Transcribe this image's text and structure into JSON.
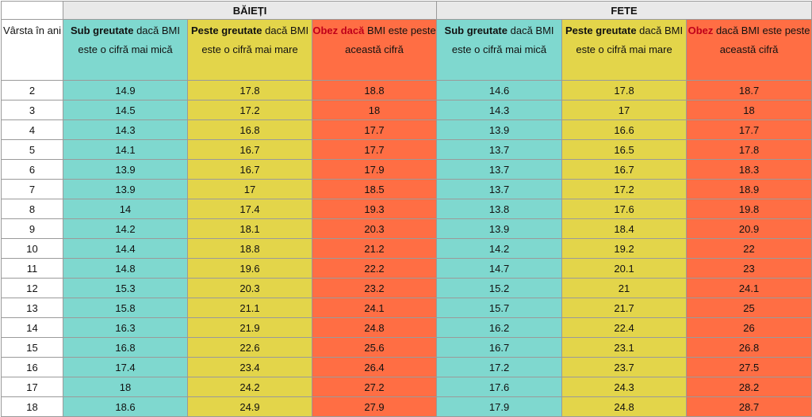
{
  "groups": {
    "boys": "BĂIEȚI",
    "girls": "FETE"
  },
  "headers": {
    "age": "Vârsta în ani",
    "sub_bold": "Sub greutate",
    "sub_rest": " dacă BMI este o cifră mai mică",
    "peste_bold": "Peste greutate",
    "peste_rest": " dacă BMI este o cifră mai mare",
    "obez_boys_bold": "Obez dacă",
    "obez_boys_rest": "  BMI este peste această cifră",
    "obez_girls_bold": "Obez",
    "obez_girls_rest": " dacă  BMI este peste această cifră"
  },
  "rows": [
    [
      "2",
      "14.9",
      "17.8",
      "18.8",
      "14.6",
      "17.8",
      "18.7"
    ],
    [
      "3",
      "14.5",
      "17.2",
      "18",
      "14.3",
      "17",
      "18"
    ],
    [
      "4",
      "14.3",
      "16.8",
      "17.7",
      "13.9",
      "16.6",
      "17.7"
    ],
    [
      "5",
      "14.1",
      "16.7",
      "17.7",
      "13.7",
      "16.5",
      "17.8"
    ],
    [
      "6",
      "13.9",
      "16.7",
      "17.9",
      "13.7",
      "16.7",
      "18.3"
    ],
    [
      "7",
      "13.9",
      "17",
      "18.5",
      "13.7",
      "17.2",
      "18.9"
    ],
    [
      "8",
      "14",
      "17.4",
      "19.3",
      "13.8",
      "17.6",
      "19.8"
    ],
    [
      "9",
      "14.2",
      "18.1",
      "20.3",
      "13.9",
      "18.4",
      "20.9"
    ],
    [
      "10",
      "14.4",
      "18.8",
      "21.2",
      "14.2",
      "19.2",
      "22"
    ],
    [
      "11",
      "14.8",
      "19.6",
      "22.2",
      "14.7",
      "20.1",
      "23"
    ],
    [
      "12",
      "15.3",
      "20.3",
      "23.2",
      "15.2",
      "21",
      "24.1"
    ],
    [
      "13",
      "15.8",
      "21.1",
      "24.1",
      "15.7",
      "21.7",
      "25"
    ],
    [
      "14",
      "16.3",
      "21.9",
      "24.8",
      "16.2",
      "22.4",
      "26"
    ],
    [
      "15",
      "16.8",
      "22.6",
      "25.6",
      "16.7",
      "23.1",
      "26.8"
    ],
    [
      "16",
      "17.4",
      "23.4",
      "26.4",
      "17.2",
      "23.7",
      "27.5"
    ],
    [
      "17",
      "18",
      "24.2",
      "27.2",
      "17.6",
      "24.3",
      "28.2"
    ],
    [
      "18",
      "18.6",
      "24.9",
      "27.9",
      "17.9",
      "24.8",
      "28.7"
    ]
  ]
}
